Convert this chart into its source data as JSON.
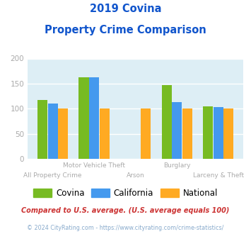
{
  "title_line1": "2019 Covina",
  "title_line2": "Property Crime Comparison",
  "categories": [
    "All Property Crime",
    "Motor Vehicle Theft",
    "Arson",
    "Burglary",
    "Larceny & Theft"
  ],
  "x_labels_row1": [
    "",
    "Motor Vehicle Theft",
    "",
    "Burglary",
    ""
  ],
  "x_labels_row2": [
    "All Property Crime",
    "",
    "Arson",
    "",
    "Larceny & Theft"
  ],
  "covina": [
    117,
    162,
    0,
    147,
    105
  ],
  "california": [
    110,
    163,
    0,
    113,
    103
  ],
  "national": [
    100,
    100,
    100,
    100,
    100
  ],
  "color_covina": "#77bb22",
  "color_california": "#4499ee",
  "color_national": "#ffaa22",
  "ylim": [
    0,
    200
  ],
  "yticks": [
    0,
    50,
    100,
    150,
    200
  ],
  "background_color": "#ddeef5",
  "legend_labels": [
    "Covina",
    "California",
    "National"
  ],
  "footnote1": "Compared to U.S. average. (U.S. average equals 100)",
  "footnote2": "© 2024 CityRating.com - https://www.cityrating.com/crime-statistics/",
  "title_color": "#1155cc",
  "footnote1_color": "#cc3333",
  "footnote2_color": "#88aacc",
  "xlabel_color": "#aaaaaa",
  "ytick_color": "#aaaaaa",
  "grid_color": "#ffffff",
  "bar_width": 0.24
}
